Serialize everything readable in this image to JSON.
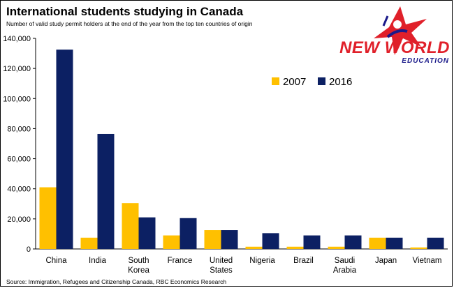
{
  "title": "International students studying in Canada",
  "subtitle": "Number of valid study permit holders at the end of the year from the top ten countries of origin",
  "source": "Source: Immigration, Refugees and Citizenship Canada, RBC Economics Research",
  "logo": {
    "line1": "NEW WORLD",
    "line2": "EDUCATION",
    "color": "#e0202a",
    "accent": "#1a1a8a"
  },
  "chart_data": {
    "type": "bar",
    "categories": [
      "China",
      "India",
      "South Korea",
      "France",
      "United States",
      "Nigeria",
      "Brazil",
      "Saudi Arabia",
      "Japan",
      "Vietnam"
    ],
    "series": [
      {
        "name": "2007",
        "color": "#ffc000",
        "values": [
          41000,
          7500,
          30500,
          9000,
          12500,
          1500,
          1500,
          1500,
          7500,
          1000
        ]
      },
      {
        "name": "2016",
        "color": "#0c2063",
        "values": [
          132500,
          76500,
          21000,
          20500,
          12500,
          10500,
          9000,
          9000,
          7500,
          7500
        ]
      }
    ],
    "ylim": [
      0,
      140000
    ],
    "yticks": [
      "0",
      "20,000",
      "40,000",
      "60,000",
      "80,000",
      "100,000",
      "120,000",
      "140,000"
    ],
    "legend": "upper-right"
  }
}
